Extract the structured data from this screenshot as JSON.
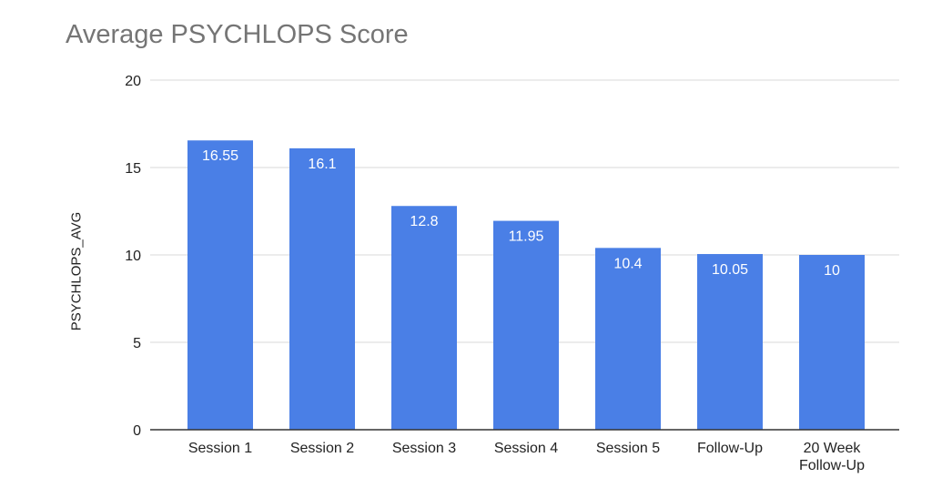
{
  "chart_data": {
    "type": "bar",
    "title": "Average PSYCHLOPS Score",
    "xlabel": "",
    "ylabel": "PSYCHLOPS_AVG",
    "categories": [
      "Session 1",
      "Session 2",
      "Session 3",
      "Session 4",
      "Session 5",
      "Follow-Up",
      "20 Week Follow-Up"
    ],
    "category_lines": [
      [
        "Session 1"
      ],
      [
        "Session 2"
      ],
      [
        "Session 3"
      ],
      [
        "Session 4"
      ],
      [
        "Session 5"
      ],
      [
        "Follow-Up"
      ],
      [
        "20 Week",
        "Follow-Up"
      ]
    ],
    "values": [
      16.55,
      16.1,
      12.8,
      11.95,
      10.4,
      10.05,
      10
    ],
    "data_labels": [
      "16.55",
      "16.1",
      "12.8",
      "11.95",
      "10.4",
      "10.05",
      "10"
    ],
    "ylim": [
      0,
      20
    ],
    "yticks": [
      0,
      5,
      10,
      15,
      20
    ],
    "grid": true,
    "legend": "none",
    "colors": {
      "bar": "#4a7fe6",
      "grid": "#d9d9d9",
      "axis": "#333333",
      "label": "#ffffff",
      "tick": "#222222",
      "title": "#757575"
    }
  }
}
